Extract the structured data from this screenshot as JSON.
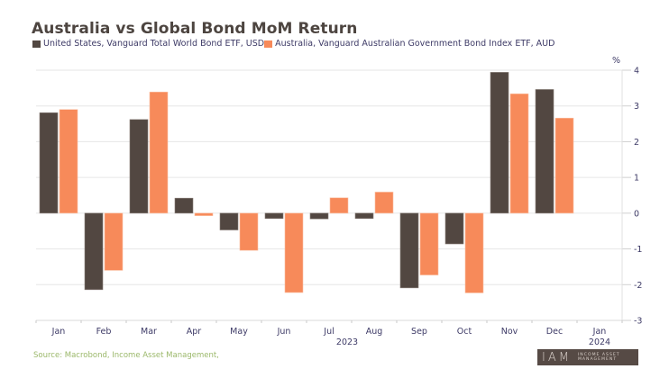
{
  "chart_data": {
    "type": "bar",
    "title": "Australia vs Global Bond MoM Return",
    "ylabel": "%",
    "xlabel": "",
    "categories": [
      "Jan",
      "Feb",
      "Mar",
      "Apr",
      "May",
      "Jun",
      "Jul",
      "Aug",
      "Sep",
      "Oct",
      "Nov",
      "Dec",
      "Jan"
    ],
    "year_labels": [
      {
        "label": "2023",
        "after_category_index": 6
      },
      {
        "label": "2024",
        "after_category_index": 12
      }
    ],
    "series": [
      {
        "name": "United States, Vanguard Total World Bond ETF, USD",
        "color": "#524741",
        "values": [
          2.81,
          -2.14,
          2.62,
          0.42,
          -0.47,
          -0.15,
          -0.16,
          -0.15,
          -2.09,
          -0.86,
          3.94,
          3.46,
          null
        ]
      },
      {
        "name": "Australia, Vanguard Australian Government Bond Index ETF, AUD",
        "color": "#f78a5a",
        "values": [
          2.9,
          -1.6,
          3.39,
          -0.07,
          -1.04,
          -2.22,
          0.43,
          0.59,
          -1.73,
          -2.23,
          3.34,
          2.66,
          null
        ]
      }
    ],
    "ylim": [
      -3,
      4
    ],
    "yticks": [
      4,
      3,
      2,
      1,
      0,
      -1,
      -2,
      -3
    ],
    "y_axis_side": "right",
    "grid": true,
    "legend_position": "top-left"
  },
  "legend": {
    "items": [
      {
        "label": "United States, Vanguard Total World Bond ETF, USD",
        "color": "#524741"
      },
      {
        "label": "Australia, Vanguard Australian Government Bond Index ETF, AUD",
        "color": "#f78a5a"
      }
    ]
  },
  "footer": {
    "source": "Source: Macrobond, Income Asset Management,",
    "logo_mark": "IAM",
    "logo_line1": "INCOME ASSET",
    "logo_line2": "MANAGEMENT"
  }
}
